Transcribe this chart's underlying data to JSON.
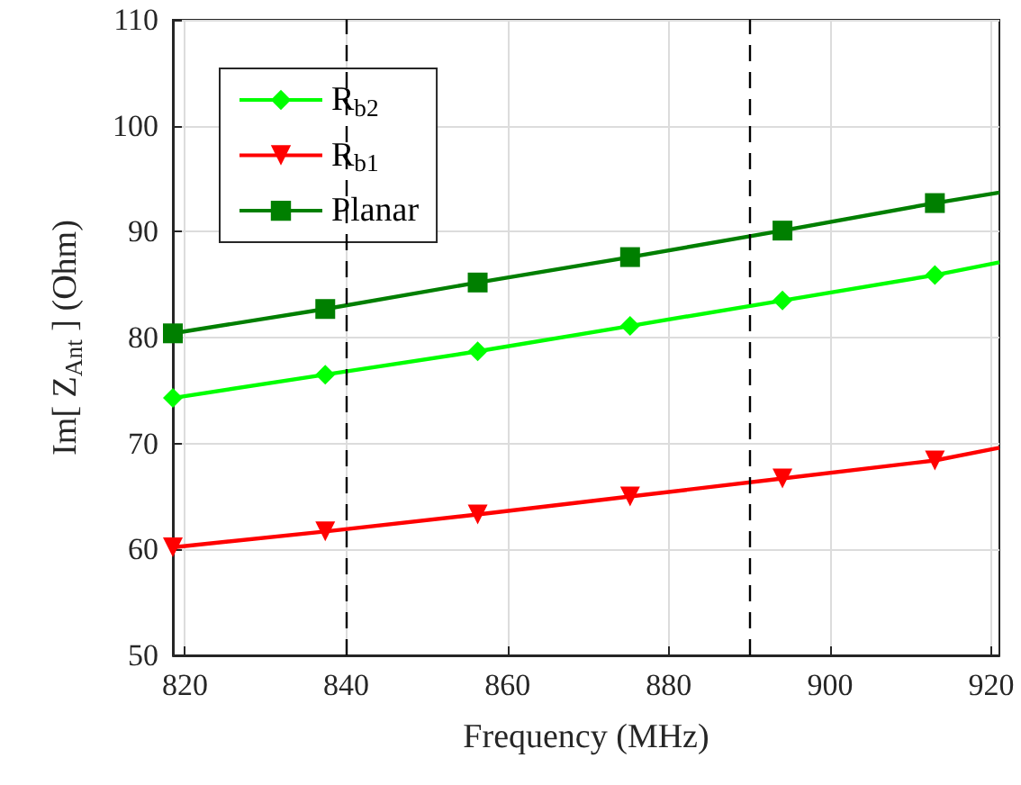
{
  "chart_data": {
    "type": "line",
    "xlabel": "Frequency (MHz)",
    "ylabel": "Im[ Z$_{Ant}$ ] (Ohm)",
    "xlim": [
      818.5,
      921
    ],
    "xticks": [
      820,
      840,
      860,
      880,
      900,
      920
    ],
    "ylim": [
      50,
      110
    ],
    "yticks": [
      50,
      60,
      70,
      80,
      90,
      100,
      110
    ],
    "grid": true,
    "legend": "top left",
    "series": [
      {
        "name": "R$_{b2}$",
        "color": "#00ff00",
        "marker": "diamond",
        "x": [
          818.5,
          837.4,
          856.3,
          875.2,
          894.1,
          913,
          921
        ],
        "values": [
          74.3,
          76.5,
          78.7,
          81.1,
          83.5,
          85.9,
          87.1
        ]
      },
      {
        "name": "R$_{b1}$",
        "color": "#ff0000",
        "marker": "triangle-down",
        "x": [
          818.5,
          837.4,
          856.3,
          875.2,
          894.1,
          913,
          921
        ],
        "values": [
          60.2,
          61.7,
          63.3,
          65.0,
          66.7,
          68.4,
          69.6
        ]
      },
      {
        "name": "Planar",
        "color": "#007f00",
        "marker": "square",
        "x": [
          818.5,
          837.4,
          856.3,
          875.2,
          894.1,
          913,
          921
        ],
        "values": [
          80.4,
          82.7,
          85.2,
          87.6,
          90.1,
          92.7,
          93.7
        ]
      }
    ],
    "ref_lines": [
      {
        "axis": "x",
        "value": 840,
        "color": "#000000",
        "line_style": "dashed"
      },
      {
        "axis": "x",
        "value": 890,
        "color": "#000000",
        "line_style": "dashed"
      }
    ]
  }
}
